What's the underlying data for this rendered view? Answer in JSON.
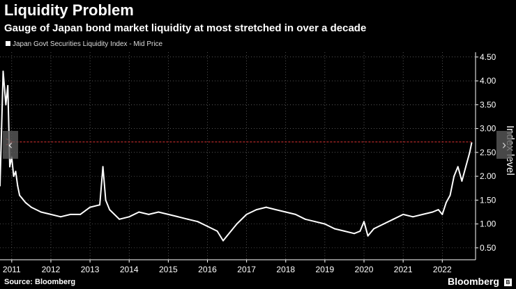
{
  "header": {
    "title": "Liquidity Problem",
    "subtitle": "Gauge of Japan bond market liquidity at most stretched in over a decade",
    "legend": "Japan Govt Securities Liquidity Index - Mid Price"
  },
  "footer": {
    "source": "Source: Bloomberg",
    "brand": "Bloomberg",
    "brand_mark": "B"
  },
  "nav": {
    "prev_icon": "‹",
    "next_icon": "›"
  },
  "colors": {
    "background": "#000000",
    "series": "#ffffff",
    "reference_line": "#cc2e2e",
    "grid": "#8a8a8a"
  },
  "chart_data": {
    "type": "line",
    "title": "Liquidity Problem",
    "subtitle": "Gauge of Japan bond market liquidity at most stretched in over a decade",
    "xlabel": "",
    "ylabel": "Index level",
    "xlim": [
      2010.7,
      2022.85
    ],
    "ylim": [
      0.25,
      4.6
    ],
    "yticks": [
      0.5,
      1.0,
      1.5,
      2.0,
      2.5,
      3.0,
      3.5,
      4.0,
      4.5
    ],
    "ytick_labels": [
      "0.50",
      "1.00",
      "1.50",
      "2.00",
      "2.50",
      "3.00",
      "3.50",
      "4.00",
      "4.50"
    ],
    "xticks": [
      2011,
      2012,
      2013,
      2014,
      2015,
      2016,
      2017,
      2018,
      2019,
      2020,
      2021,
      2022
    ],
    "grid": true,
    "legend_position": "top-left",
    "reference_line": {
      "value": 2.72,
      "from_x": 2011.0,
      "to_x": 2022.75,
      "style": "dashed-arrow"
    },
    "series": [
      {
        "name": "Japan Govt Securities Liquidity Index - Mid Price",
        "x": [
          2010.7,
          2010.78,
          2010.85,
          2010.9,
          2010.95,
          2011.0,
          2011.05,
          2011.1,
          2011.15,
          2011.2,
          2011.25,
          2011.35,
          2011.5,
          2011.75,
          2012.0,
          2012.25,
          2012.5,
          2012.75,
          2013.0,
          2013.25,
          2013.33,
          2013.4,
          2013.5,
          2013.75,
          2014.0,
          2014.25,
          2014.5,
          2014.75,
          2015.0,
          2015.25,
          2015.5,
          2015.75,
          2016.0,
          2016.25,
          2016.4,
          2016.5,
          2016.75,
          2017.0,
          2017.25,
          2017.5,
          2017.75,
          2018.0,
          2018.25,
          2018.5,
          2018.75,
          2019.0,
          2019.25,
          2019.5,
          2019.75,
          2019.9,
          2020.0,
          2020.1,
          2020.2,
          2020.25,
          2020.5,
          2020.75,
          2021.0,
          2021.25,
          2021.5,
          2021.75,
          2021.9,
          2022.0,
          2022.1,
          2022.2,
          2022.3,
          2022.4,
          2022.5,
          2022.6,
          2022.7,
          2022.75
        ],
        "values": [
          1.8,
          4.2,
          3.5,
          3.9,
          2.2,
          2.4,
          2.0,
          2.1,
          1.8,
          1.6,
          1.55,
          1.45,
          1.35,
          1.25,
          1.2,
          1.15,
          1.2,
          1.2,
          1.35,
          1.4,
          2.2,
          1.5,
          1.3,
          1.1,
          1.15,
          1.25,
          1.2,
          1.25,
          1.2,
          1.15,
          1.1,
          1.05,
          0.95,
          0.85,
          0.65,
          0.75,
          1.0,
          1.2,
          1.3,
          1.35,
          1.3,
          1.25,
          1.2,
          1.1,
          1.05,
          1.0,
          0.9,
          0.85,
          0.8,
          0.85,
          1.05,
          0.75,
          0.85,
          0.9,
          1.0,
          1.1,
          1.2,
          1.15,
          1.2,
          1.25,
          1.3,
          1.2,
          1.45,
          1.6,
          2.0,
          2.2,
          1.9,
          2.2,
          2.5,
          2.7
        ]
      }
    ]
  }
}
